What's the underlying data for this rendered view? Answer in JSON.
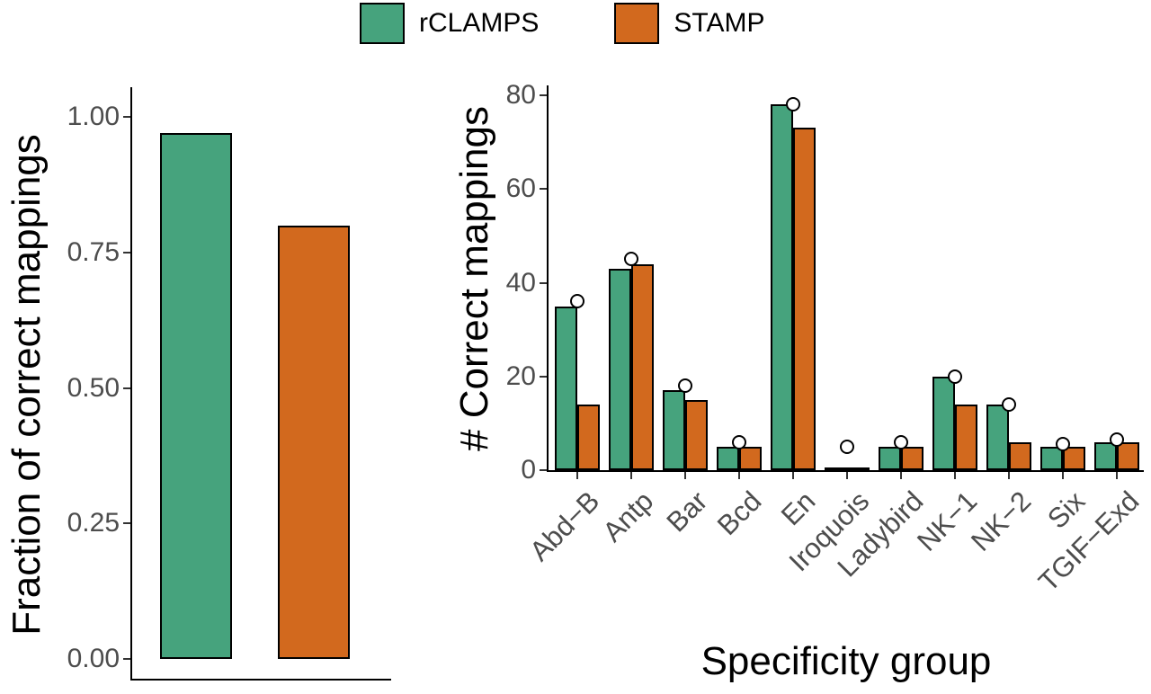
{
  "colors": {
    "rclamps_green": "#46A37D",
    "stamp_orange": "#D2691E",
    "axis": "#000000",
    "tick_text": "#4d4d4d",
    "marker_fill": "#ffffff",
    "background": "#ffffff"
  },
  "legend": {
    "items": [
      {
        "label": "rCLAMPS",
        "color_key": "rclamps_green"
      },
      {
        "label": "STAMP",
        "color_key": "stamp_orange"
      }
    ]
  },
  "chart_data": [
    {
      "type": "bar",
      "panel": "left",
      "title": "",
      "ylabel": "Fraction of correct mappings",
      "xlabel": "",
      "ylim": [
        0,
        1.05
      ],
      "yticks": [
        0,
        0.25,
        0.5,
        0.75,
        1
      ],
      "ytick_labels": [
        "0.00",
        "0.25",
        "0.50",
        "0.75",
        "1.00"
      ],
      "categories": [
        "rCLAMPS",
        "STAMP"
      ],
      "color_keys": [
        "rclamps_green",
        "stamp_orange"
      ],
      "values": [
        0.97,
        0.8
      ],
      "grid": false,
      "legend_position": "top"
    },
    {
      "type": "bar",
      "panel": "right",
      "title": "",
      "ylabel": "# Correct mappings",
      "xlabel": "Specificity group",
      "ylim": [
        0,
        80
      ],
      "yticks": [
        0,
        20,
        40,
        60,
        80
      ],
      "ytick_labels": [
        "0",
        "20",
        "40",
        "60",
        "80"
      ],
      "x_tick_rotation": 45,
      "categories": [
        "Abd−B",
        "Antp",
        "Bar",
        "Bcd",
        "En",
        "Iroquois",
        "Ladybird",
        "NK−1",
        "NK−2",
        "Six",
        "TGIF−Exd"
      ],
      "series": [
        {
          "name": "rCLAMPS",
          "color_key": "rclamps_green",
          "values": [
            35,
            43,
            17,
            5,
            78,
            0,
            5,
            20,
            14,
            5,
            6
          ]
        },
        {
          "name": "STAMP",
          "color_key": "stamp_orange",
          "values": [
            14,
            44,
            15,
            5,
            73,
            0,
            5,
            14,
            6,
            5,
            6
          ]
        }
      ],
      "markers": {
        "shape": "open-circle",
        "values": [
          36,
          45,
          18,
          6,
          78,
          5,
          6,
          20,
          14,
          5.5,
          6.5
        ]
      },
      "grid": false
    }
  ]
}
